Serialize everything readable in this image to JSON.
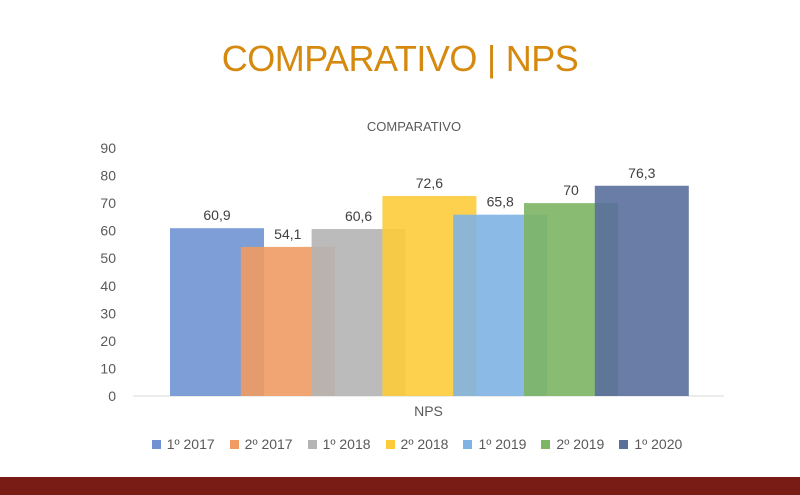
{
  "slide": {
    "title_main": "COMPARATIVO",
    "title_sep": "|",
    "title_sub": "NPS",
    "bottom_bar_color": "#7a1c16"
  },
  "chart_data": {
    "type": "bar",
    "title": "COMPARATIVO",
    "xlabel": "NPS",
    "ylabel": "",
    "categories": [
      "NPS"
    ],
    "ylim": [
      0,
      90
    ],
    "yticks": [
      0,
      10,
      20,
      30,
      40,
      50,
      60,
      70,
      80,
      90
    ],
    "grid": false,
    "legend_position": "bottom",
    "series": [
      {
        "name": "1º 2017",
        "values": [
          60.9
        ],
        "label": "60,9",
        "color": "#6f93d2"
      },
      {
        "name": "2º 2017",
        "values": [
          54.1
        ],
        "label": "54,1",
        "color": "#ef9b63"
      },
      {
        "name": "1º 2018",
        "values": [
          60.6
        ],
        "label": "60,6",
        "color": "#b4b4b4"
      },
      {
        "name": "2º 2018",
        "values": [
          72.6
        ],
        "label": "72,6",
        "color": "#fdcb3a"
      },
      {
        "name": "1º 2019",
        "values": [
          65.8
        ],
        "label": "65,8",
        "color": "#80b2e3"
      },
      {
        "name": "2º 2019",
        "values": [
          70
        ],
        "label": "70",
        "color": "#7cb563"
      },
      {
        "name": "1º 2020",
        "values": [
          76.3
        ],
        "label": "76,3",
        "color": "#5a6f9c"
      }
    ]
  }
}
